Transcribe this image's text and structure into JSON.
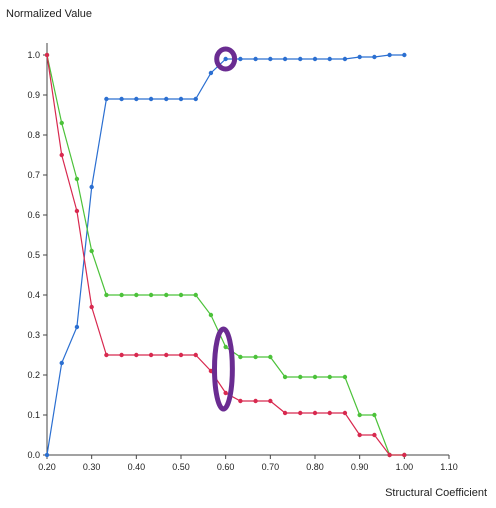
{
  "chart_data": {
    "type": "line",
    "ylabel": "Normalized Value",
    "xlabel": "Structural Coefficient",
    "xlim": [
      0.2,
      1.1
    ],
    "ylim": [
      0.0,
      1.0
    ],
    "x_ticks": [
      "0.20",
      "0.30",
      "0.40",
      "0.50",
      "0.60",
      "0.70",
      "0.80",
      "0.90",
      "1.00",
      "1.10"
    ],
    "y_ticks": [
      "0.0",
      "0.1",
      "0.2",
      "0.3",
      "0.4",
      "0.5",
      "0.6",
      "0.7",
      "0.8",
      "0.9",
      "1.0"
    ],
    "grid": false,
    "legend": "none",
    "series": [
      {
        "color": "#2b6fd1",
        "x": [
          0.2,
          0.233,
          0.267,
          0.3,
          0.333,
          0.367,
          0.4,
          0.433,
          0.467,
          0.5,
          0.533,
          0.567,
          0.6,
          0.633,
          0.667,
          0.7,
          0.733,
          0.767,
          0.8,
          0.833,
          0.867,
          0.9,
          0.933,
          0.967,
          1.0
        ],
        "y": [
          0.0,
          0.23,
          0.32,
          0.67,
          0.89,
          0.89,
          0.89,
          0.89,
          0.89,
          0.89,
          0.89,
          0.955,
          0.99,
          0.99,
          0.99,
          0.99,
          0.99,
          0.99,
          0.99,
          0.99,
          0.99,
          0.995,
          0.995,
          1.0,
          1.0
        ]
      },
      {
        "color": "#4cc23a",
        "x": [
          0.2,
          0.233,
          0.267,
          0.3,
          0.333,
          0.367,
          0.4,
          0.433,
          0.467,
          0.5,
          0.533,
          0.567,
          0.6,
          0.633,
          0.667,
          0.7,
          0.733,
          0.767,
          0.8,
          0.833,
          0.867,
          0.9,
          0.933,
          0.967,
          1.0
        ],
        "y": [
          1.0,
          0.83,
          0.69,
          0.51,
          0.4,
          0.4,
          0.4,
          0.4,
          0.4,
          0.4,
          0.4,
          0.35,
          0.27,
          0.245,
          0.245,
          0.245,
          0.195,
          0.195,
          0.195,
          0.195,
          0.195,
          0.1,
          0.1,
          0.0,
          0.0
        ]
      },
      {
        "color": "#d8294f",
        "x": [
          0.2,
          0.233,
          0.267,
          0.3,
          0.333,
          0.367,
          0.4,
          0.433,
          0.467,
          0.5,
          0.533,
          0.567,
          0.6,
          0.633,
          0.667,
          0.7,
          0.733,
          0.767,
          0.8,
          0.833,
          0.867,
          0.9,
          0.933,
          0.967,
          1.0
        ],
        "y": [
          1.0,
          0.75,
          0.61,
          0.37,
          0.25,
          0.25,
          0.25,
          0.25,
          0.25,
          0.25,
          0.25,
          0.21,
          0.155,
          0.135,
          0.135,
          0.135,
          0.105,
          0.105,
          0.105,
          0.105,
          0.105,
          0.05,
          0.05,
          0.0,
          0.0
        ]
      }
    ],
    "annotations": [
      {
        "shape": "ellipse",
        "color": "#6a2c91",
        "x": 0.6,
        "y": 0.99,
        "rx": 0.02,
        "ry": 0.025
      },
      {
        "shape": "ellipse",
        "color": "#6a2c91",
        "x": 0.595,
        "y": 0.215,
        "rx": 0.02,
        "ry": 0.1
      }
    ]
  }
}
